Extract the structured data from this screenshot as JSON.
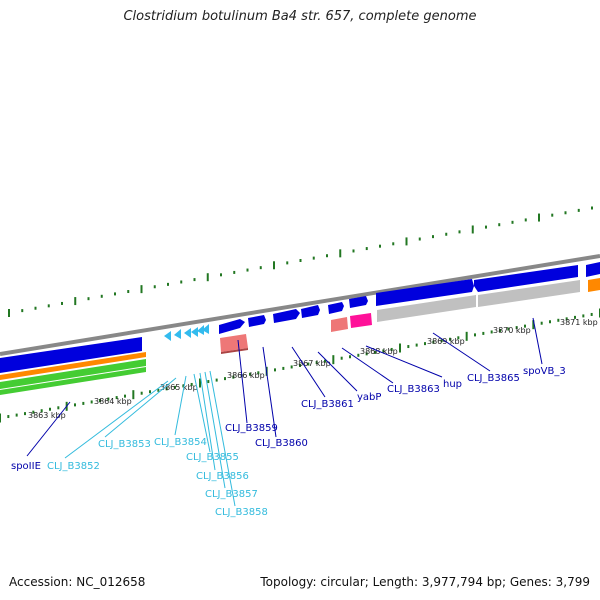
{
  "title": "Clostridium botulinum Ba4 str. 657, complete genome",
  "footer": {
    "accession": "Accession: NC_012658",
    "summary": "Topology: circular; Length: 3,977,794 bp; Genes: 3,799"
  },
  "colors": {
    "cds_forward": "#0000dd",
    "cds_reverse": "#0000dd",
    "trna": "#33bbee",
    "rrna": "#ee7777",
    "misc": "#ff1199",
    "gray_track": "#c0c0c0",
    "orange_track": "#ff8800",
    "green_track": "#44cc33",
    "tick": "#227722",
    "label_dark": "#0000aa",
    "label_light": "#33bbdd"
  },
  "ruler": {
    "unit": "kbp",
    "ticks": [
      "3863 kbp",
      "3864 kbp",
      "3865 kbp",
      "3866 kbp",
      "3867 kbp",
      "3868 kbp",
      "3869 kbp",
      "3870 kbp",
      "3871 kbp"
    ]
  },
  "genes": [
    {
      "name": "spoIIE",
      "color_role": "dark"
    },
    {
      "name": "CLJ_B3852",
      "color_role": "light"
    },
    {
      "name": "CLJ_B3853",
      "color_role": "light"
    },
    {
      "name": "CLJ_B3854",
      "color_role": "light"
    },
    {
      "name": "CLJ_B3855",
      "color_role": "light"
    },
    {
      "name": "CLJ_B3856",
      "color_role": "light"
    },
    {
      "name": "CLJ_B3857",
      "color_role": "light"
    },
    {
      "name": "CLJ_B3858",
      "color_role": "light"
    },
    {
      "name": "CLJ_B3859",
      "color_role": "dark"
    },
    {
      "name": "CLJ_B3860",
      "color_role": "dark"
    },
    {
      "name": "CLJ_B3861",
      "color_role": "dark"
    },
    {
      "name": "yabP",
      "color_role": "dark"
    },
    {
      "name": "CLJ_B3863",
      "color_role": "dark"
    },
    {
      "name": "hup",
      "color_role": "dark"
    },
    {
      "name": "CLJ_B3865",
      "color_role": "dark"
    },
    {
      "name": "spoVB_3",
      "color_role": "dark"
    }
  ]
}
